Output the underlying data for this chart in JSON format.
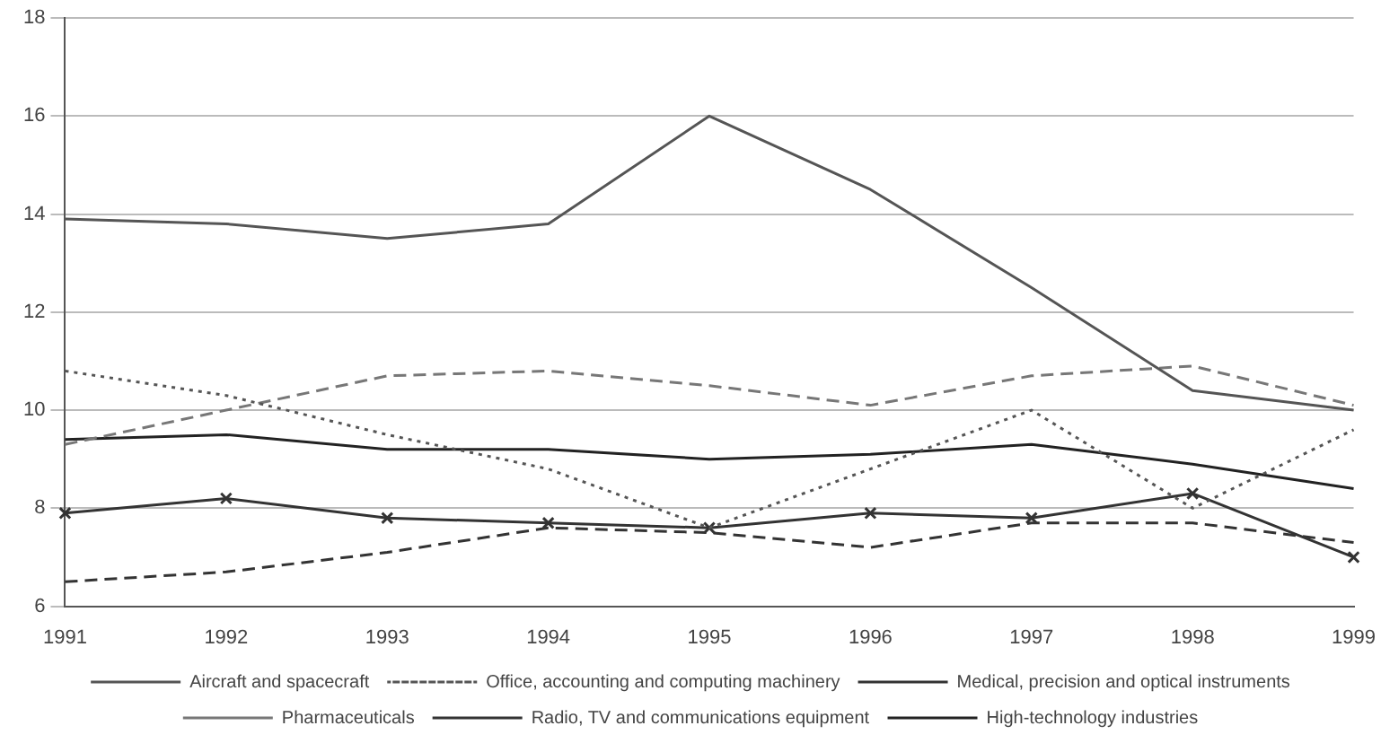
{
  "chart_data": {
    "type": "line",
    "categories": [
      "1991",
      "1992",
      "1993",
      "1994",
      "1995",
      "1996",
      "1997",
      "1998",
      "1999"
    ],
    "series": [
      {
        "name": "Aircraft and spacecraft",
        "color": "#555555",
        "line_style": "solid",
        "marker": "none",
        "values": [
          13.9,
          13.8,
          13.5,
          13.8,
          16.0,
          14.5,
          12.5,
          10.4,
          10.0
        ]
      },
      {
        "name": "Office, accounting and computing machinery",
        "color": "#555555",
        "line_style": "dotted",
        "marker": "none",
        "values": [
          10.8,
          10.3,
          9.5,
          8.8,
          7.6,
          8.8,
          10.0,
          8.0,
          9.6
        ]
      },
      {
        "name": "Medical, precision and optical instruments",
        "color": "#333333",
        "line_style": "dashed",
        "marker": "none",
        "values": [
          6.5,
          6.7,
          7.1,
          7.6,
          7.5,
          7.2,
          7.7,
          7.7,
          7.3
        ]
      },
      {
        "name": "Pharmaceuticals",
        "color": "#777777",
        "line_style": "dashed",
        "marker": "none",
        "values": [
          9.3,
          10.0,
          10.7,
          10.8,
          10.5,
          10.1,
          10.7,
          10.9,
          10.1
        ]
      },
      {
        "name": "Radio, TV and communications equipment",
        "color": "#333333",
        "line_style": "solid",
        "marker": "cross",
        "values": [
          7.9,
          8.2,
          7.8,
          7.7,
          7.6,
          7.9,
          7.8,
          8.3,
          7.0
        ]
      },
      {
        "name": "High-technology industries",
        "color": "#222222",
        "line_style": "solid",
        "marker": "none",
        "values": [
          9.4,
          9.5,
          9.2,
          9.2,
          9.0,
          9.1,
          9.3,
          8.9,
          8.4
        ]
      }
    ],
    "ylim": [
      6,
      18
    ],
    "yticks": [
      6,
      8,
      10,
      12,
      14,
      16,
      18
    ],
    "grid": "y",
    "legend": "bottom"
  }
}
